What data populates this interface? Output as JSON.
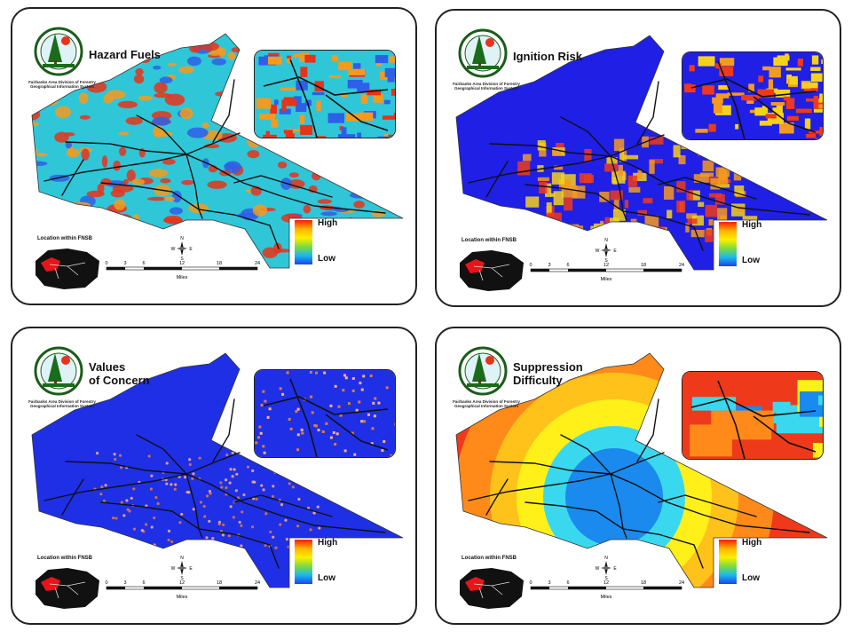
{
  "agency_caption": "Fairbanks Area Division of Forestry Geographical Information System",
  "location_label": "Location within FNSB",
  "legend": {
    "high": "High",
    "low": "Low"
  },
  "compass": {
    "n": "N",
    "s": "S",
    "e": "E",
    "w": "W"
  },
  "scale": {
    "ticks": [
      "0",
      "3",
      "6",
      "12",
      "18",
      "24"
    ],
    "unit": "Miles"
  },
  "panels": [
    {
      "title_line1": "Hazard Fuels",
      "title_line2": "",
      "theme": "hazard",
      "colors": {
        "base": "#2fc6d8",
        "patches": [
          "#e8321a",
          "#f59a1e",
          "#2e5fe8"
        ]
      }
    },
    {
      "title_line1": "Ignition Risk",
      "title_line2": "",
      "theme": "ignition",
      "colors": {
        "base": "#1f1fe6",
        "patches": [
          "#f5d21a",
          "#ee3a1a",
          "#f59a1e"
        ]
      }
    },
    {
      "title_line1": "Values",
      "title_line2": "of Concern",
      "theme": "values",
      "colors": {
        "base": "#1f2fe6",
        "patches": [
          "#e07a40",
          "#ffb080"
        ]
      }
    },
    {
      "title_line1": "Suppression",
      "title_line2": "Difficulty",
      "theme": "suppression",
      "colors": {
        "base": "#ee3a1a",
        "patches": [
          "#ff8a1a",
          "#ffc21a",
          "#fff01a",
          "#3ad8ee",
          "#1a8aee"
        ]
      }
    }
  ]
}
